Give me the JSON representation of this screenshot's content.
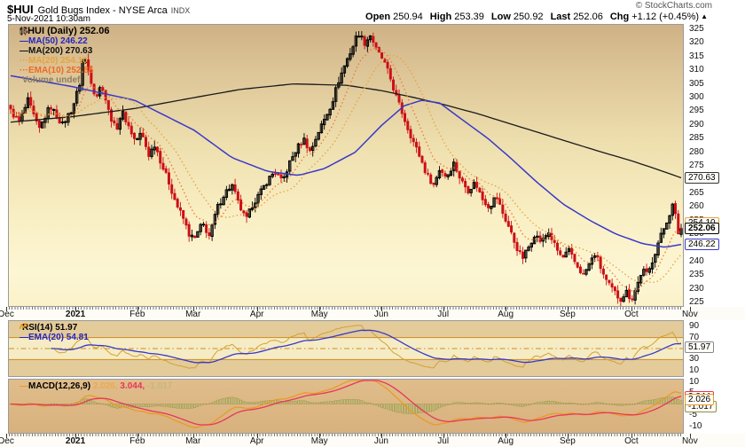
{
  "header": {
    "symbol": "$HUI",
    "name": "Gold Bugs Index - NYSE Arca",
    "exchange": "INDX",
    "datetime": "5-Nov-2021 10:30am",
    "copyright": "© StockCharts.com",
    "quote": {
      "open_label": "Open",
      "open_value": "250.94",
      "high_label": "High",
      "high_value": "253.39",
      "low_label": "Low",
      "low_value": "250.92",
      "last_label": "Last",
      "last_value": "252.06",
      "chg_label": "Chg",
      "chg_value": "+1.12 (+0.45%)",
      "chg_arrow": "▲"
    }
  },
  "legend": {
    "title": "$HUI (Daily) 252.06",
    "ma50_prefix": "—",
    "ma50": "MA(50) 246.22",
    "ma200_prefix": "—",
    "ma200": "MA(200) 270.63",
    "ma20_prefix": "···",
    "ma20": "MA(20) 254.10",
    "ema10_prefix": "···",
    "ema10": "EMA(10) 252.85",
    "volume": "Volume undef"
  },
  "rsi_panel": {
    "label": "RSI(14) 51.97",
    "ema_prefix": "—",
    "ema_label": "EMA(20) 54.81",
    "badge": "51.97",
    "ticks": [
      "90",
      "70",
      "30",
      "10"
    ]
  },
  "macd_panel": {
    "prefix": "—",
    "label": "MACD(12,26,9)",
    "macd_value": "2.026,",
    "signal_value": "3.044,",
    "hist_value": "-1.017",
    "badge_macd": "2.026",
    "badge_signal": "3.044",
    "badge_hist": "-1.017",
    "ticks": [
      "10",
      "5",
      "-5",
      "-10"
    ]
  },
  "price_badges": {
    "ma200": "270.63",
    "ma20": "254.10",
    "last": "252.06",
    "ma50": "246.22"
  },
  "chart_data": {
    "type": "candlestick",
    "title": "$HUI Gold Bugs Index - NYSE Arca, Daily",
    "x_range": "Dec 2020 - 5 Nov 2021",
    "y_axis": {
      "min": 225,
      "max": 325,
      "tick_step": 5
    },
    "months": [
      [
        "Dec",
        -0.004
      ],
      [
        "2021",
        0.099
      ],
      [
        "Feb",
        0.191
      ],
      [
        "Mar",
        0.274
      ],
      [
        "Apr",
        0.369
      ],
      [
        "May",
        0.462
      ],
      [
        "Jun",
        0.554
      ],
      [
        "Jul",
        0.646
      ],
      [
        "Aug",
        0.739
      ],
      [
        "Sep",
        0.831
      ],
      [
        "Oct",
        0.926
      ],
      [
        "Nov",
        1.013
      ]
    ],
    "candle_count": 234,
    "last_price": 252.06,
    "ohlc_today": {
      "open": 250.94,
      "high": 253.39,
      "low": 250.92,
      "last": 252.06,
      "chg": 1.12,
      "chg_pct": 0.45
    },
    "close_anchors": [
      [
        0.0,
        295
      ],
      [
        0.013,
        291
      ],
      [
        0.026,
        299
      ],
      [
        0.042,
        288
      ],
      [
        0.059,
        297
      ],
      [
        0.077,
        290
      ],
      [
        0.092,
        296
      ],
      [
        0.103,
        305
      ],
      [
        0.109,
        316
      ],
      [
        0.117,
        309
      ],
      [
        0.127,
        300
      ],
      [
        0.136,
        305
      ],
      [
        0.146,
        295
      ],
      [
        0.157,
        288
      ],
      [
        0.166,
        295
      ],
      [
        0.175,
        290
      ],
      [
        0.186,
        284
      ],
      [
        0.195,
        287
      ],
      [
        0.206,
        279
      ],
      [
        0.215,
        283
      ],
      [
        0.226,
        275
      ],
      [
        0.236,
        269
      ],
      [
        0.247,
        261
      ],
      [
        0.257,
        256
      ],
      [
        0.266,
        250
      ],
      [
        0.274,
        248
      ],
      [
        0.286,
        254
      ],
      [
        0.297,
        249
      ],
      [
        0.307,
        259
      ],
      [
        0.319,
        265
      ],
      [
        0.33,
        268
      ],
      [
        0.34,
        261
      ],
      [
        0.351,
        255
      ],
      [
        0.361,
        261
      ],
      [
        0.372,
        265
      ],
      [
        0.384,
        270
      ],
      [
        0.394,
        273
      ],
      [
        0.405,
        269
      ],
      [
        0.416,
        276
      ],
      [
        0.426,
        281
      ],
      [
        0.437,
        285
      ],
      [
        0.447,
        280
      ],
      [
        0.458,
        287
      ],
      [
        0.468,
        292
      ],
      [
        0.479,
        298
      ],
      [
        0.489,
        306
      ],
      [
        0.5,
        313
      ],
      [
        0.511,
        319
      ],
      [
        0.518,
        324
      ],
      [
        0.528,
        320
      ],
      [
        0.537,
        323
      ],
      [
        0.546,
        317
      ],
      [
        0.555,
        314
      ],
      [
        0.565,
        308
      ],
      [
        0.574,
        301
      ],
      [
        0.583,
        295
      ],
      [
        0.592,
        289
      ],
      [
        0.602,
        283
      ],
      [
        0.611,
        278
      ],
      [
        0.62,
        272
      ],
      [
        0.631,
        268
      ],
      [
        0.64,
        274
      ],
      [
        0.65,
        271
      ],
      [
        0.661,
        276
      ],
      [
        0.671,
        270
      ],
      [
        0.682,
        266
      ],
      [
        0.693,
        269
      ],
      [
        0.703,
        263
      ],
      [
        0.714,
        260
      ],
      [
        0.724,
        264
      ],
      [
        0.735,
        257
      ],
      [
        0.744,
        252
      ],
      [
        0.753,
        246
      ],
      [
        0.763,
        241
      ],
      [
        0.772,
        245
      ],
      [
        0.781,
        250
      ],
      [
        0.792,
        247
      ],
      [
        0.802,
        251
      ],
      [
        0.813,
        245
      ],
      [
        0.823,
        241
      ],
      [
        0.832,
        244
      ],
      [
        0.843,
        239
      ],
      [
        0.854,
        235
      ],
      [
        0.863,
        239
      ],
      [
        0.872,
        243
      ],
      [
        0.881,
        237
      ],
      [
        0.89,
        232
      ],
      [
        0.9,
        229
      ],
      [
        0.909,
        226
      ],
      [
        0.918,
        229
      ],
      [
        0.926,
        226
      ],
      [
        0.934,
        231
      ],
      [
        0.942,
        237
      ],
      [
        0.95,
        235
      ],
      [
        0.958,
        241
      ],
      [
        0.966,
        247
      ],
      [
        0.974,
        252
      ],
      [
        0.982,
        257
      ],
      [
        0.988,
        261
      ],
      [
        0.992,
        256
      ],
      [
        0.996,
        250
      ],
      [
        1.0,
        252.06
      ]
    ],
    "ma50_anchors": [
      [
        0.0,
        308
      ],
      [
        0.092,
        304
      ],
      [
        0.185,
        299
      ],
      [
        0.274,
        288
      ],
      [
        0.33,
        278
      ],
      [
        0.383,
        273
      ],
      [
        0.429,
        271.5
      ],
      [
        0.468,
        274
      ],
      [
        0.514,
        280
      ],
      [
        0.554,
        290
      ],
      [
        0.587,
        297
      ],
      [
        0.613,
        299
      ],
      [
        0.64,
        298
      ],
      [
        0.673,
        292
      ],
      [
        0.712,
        285
      ],
      [
        0.745,
        278
      ],
      [
        0.785,
        269
      ],
      [
        0.824,
        261
      ],
      [
        0.864,
        255
      ],
      [
        0.903,
        250
      ],
      [
        0.943,
        246.5
      ],
      [
        0.976,
        245.2
      ],
      [
        1.0,
        246.22
      ]
    ],
    "ma200_anchors": [
      [
        0.0,
        291
      ],
      [
        0.092,
        293
      ],
      [
        0.185,
        296
      ],
      [
        0.274,
        300
      ],
      [
        0.343,
        303
      ],
      [
        0.422,
        305
      ],
      [
        0.501,
        304.5
      ],
      [
        0.554,
        302.5
      ],
      [
        0.602,
        300
      ],
      [
        0.645,
        297.5
      ],
      [
        0.698,
        294
      ],
      [
        0.737,
        291
      ],
      [
        0.79,
        287
      ],
      [
        0.829,
        284
      ],
      [
        0.882,
        280
      ],
      [
        0.924,
        277
      ],
      [
        0.961,
        274
      ],
      [
        1.0,
        270.63
      ]
    ],
    "overlays": {
      "ma20_window": 20,
      "ema10_span": 10,
      "ma50_last": 246.22,
      "ma200_last": 270.63,
      "ma20_last": 254.1,
      "ema10_last": 252.85
    },
    "noise": {
      "close": 1.1,
      "range": 2.3,
      "gap": 0.6
    },
    "rsi": {
      "period": 14,
      "ema": 20,
      "last": 51.97,
      "ema_last": 54.81,
      "overbought": 70,
      "midline": 50,
      "oversold": 30,
      "scale_ticks": [
        90,
        70,
        30,
        10
      ]
    },
    "macd": {
      "fast": 12,
      "slow": 26,
      "signal": 9,
      "last": 2.026,
      "signal_last": 3.044,
      "hist_last": -1.017,
      "scale_ticks": [
        10,
        5,
        -5,
        -10
      ]
    },
    "colors": {
      "up_candle": "#000000",
      "down_candle": "#cc0f16",
      "ma50": "#3939c8",
      "ma200": "#1a1a1a",
      "ma20": "#e8a33d",
      "ema10": "#f07a2e",
      "rsi_line": "#d4a130",
      "rsi_ema": "#3939c8",
      "rsi_levels": "#d08c1e",
      "rsi_band_bg": "#f5ecc5",
      "macd_line": "#e89a28",
      "macd_signal": "#e8365a",
      "macd_hist_fill": "#c3c383",
      "macd_hist_stroke": "#8e9140"
    }
  }
}
